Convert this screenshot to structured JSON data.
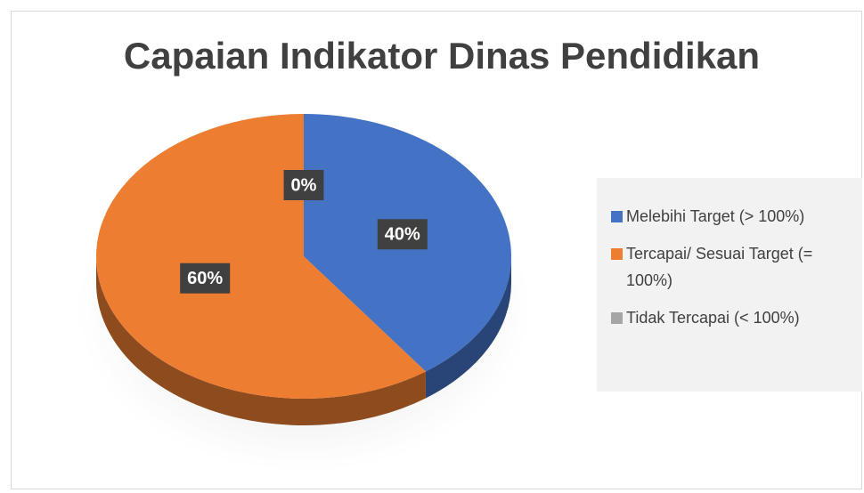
{
  "chart_data": {
    "type": "pie",
    "title": "Capaian Indikator Dinas Pendidikan",
    "categories": [
      "Melebihi Target (> 100%)",
      "Tercapai/ Sesuai Target (= 100%)",
      "Tidak Tercapai (< 100%)"
    ],
    "values": [
      40,
      60,
      0
    ],
    "value_labels": [
      "40%",
      "60%",
      "0%"
    ],
    "colors": [
      "#4472c4",
      "#ed7d31",
      "#a5a5a5"
    ],
    "legend": "right"
  }
}
